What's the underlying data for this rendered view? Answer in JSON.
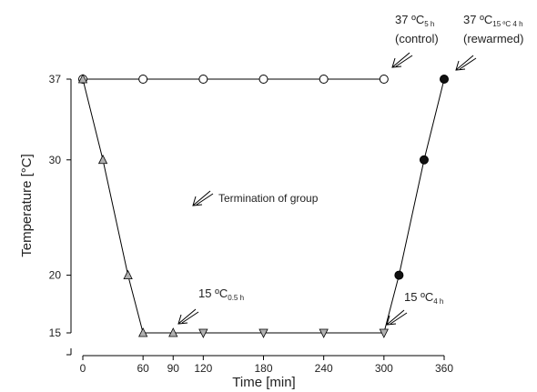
{
  "chart_data": {
    "type": "line",
    "xlabel": "Time [min]",
    "ylabel": "Temperature [°C]",
    "xlim": [
      0,
      360
    ],
    "ylim": [
      15,
      37
    ],
    "x_ticks": [
      0,
      60,
      90,
      120,
      180,
      240,
      300,
      360
    ],
    "y_ticks": [
      15,
      20,
      30,
      37
    ],
    "grid": false,
    "series": [
      {
        "marker": "open-circle",
        "color": "#ffffff",
        "x": [
          0,
          60,
          120,
          180,
          240,
          300
        ],
        "y": [
          37,
          37,
          37,
          37,
          37,
          37
        ]
      },
      {
        "marker": "gray-triangle-up",
        "color": "#b0b0b0",
        "x": [
          0,
          20,
          45,
          60,
          90
        ],
        "y": [
          37,
          30,
          20,
          15,
          15
        ]
      },
      {
        "marker": "gray-triangle-down",
        "color": "#b0b0b0",
        "x": [
          120,
          180,
          240,
          300
        ],
        "y": [
          15,
          15,
          15,
          15
        ]
      },
      {
        "marker": "filled-circle",
        "color": "#111111",
        "x": [
          315,
          340,
          360
        ],
        "y": [
          20,
          30,
          37
        ]
      }
    ],
    "connections": [
      {
        "x": [
          0,
          60,
          120,
          180,
          240,
          300
        ],
        "y": [
          37,
          37,
          37,
          37,
          37,
          37
        ]
      },
      {
        "x": [
          0,
          20,
          45,
          60,
          300,
          315,
          340,
          360
        ],
        "y": [
          37,
          30,
          20,
          15,
          15,
          20,
          30,
          37
        ]
      }
    ],
    "annotations": [
      {
        "id": "control",
        "lines": [
          [
            "37 ºC",
            "5 h"
          ],
          [
            "(control)",
            ""
          ]
        ]
      },
      {
        "id": "rewarmed",
        "lines": [
          [
            "37 ºC",
            "15 ºC 4 h"
          ],
          [
            "(rewarmed)",
            ""
          ]
        ]
      },
      {
        "id": "hypo-short",
        "lines": [
          [
            "15 ºC",
            "0.5 h"
          ]
        ]
      },
      {
        "id": "hypo-long",
        "lines": [
          [
            "15 ºC",
            "4 h"
          ]
        ]
      },
      {
        "id": "legend-arrow",
        "text": "Termination of group"
      }
    ]
  }
}
